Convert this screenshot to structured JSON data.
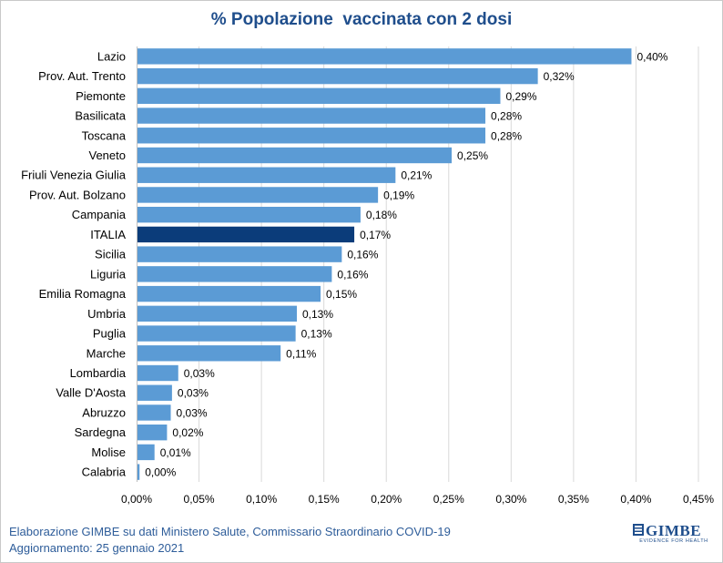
{
  "chart_data": {
    "type": "bar",
    "orientation": "horizontal",
    "title": "% Popolazione  vaccinata con 2 dosi",
    "categories": [
      "Lazio",
      "Prov. Aut. Trento",
      "Piemonte",
      "Basilicata",
      "Toscana",
      "Veneto",
      "Friuli Venezia Giulia",
      "Prov. Aut. Bolzano",
      "Campania",
      "ITALIA",
      "Sicilia",
      "Liguria",
      "Emilia Romagna",
      "Umbria",
      "Puglia",
      "Marche",
      "Lombardia",
      "Valle D'Aosta",
      "Abruzzo",
      "Sardegna",
      "Molise",
      "Calabria"
    ],
    "values": [
      0.4,
      0.32,
      0.29,
      0.28,
      0.28,
      0.25,
      0.21,
      0.19,
      0.18,
      0.17,
      0.16,
      0.16,
      0.15,
      0.13,
      0.13,
      0.11,
      0.03,
      0.03,
      0.03,
      0.02,
      0.01,
      0.0
    ],
    "plot_values": [
      0.396,
      0.321,
      0.291,
      0.279,
      0.279,
      0.252,
      0.207,
      0.193,
      0.179,
      0.174,
      0.164,
      0.156,
      0.147,
      0.128,
      0.127,
      0.115,
      0.033,
      0.028,
      0.027,
      0.024,
      0.014,
      0.002
    ],
    "data_labels": [
      "0,40%",
      "0,32%",
      "0,29%",
      "0,28%",
      "0,28%",
      "0,25%",
      "0,21%",
      "0,19%",
      "0,18%",
      "0,17%",
      "0,16%",
      "0,16%",
      "0,15%",
      "0,13%",
      "0,13%",
      "0,11%",
      "0,03%",
      "0,03%",
      "0,03%",
      "0,02%",
      "0,01%",
      "0,00%"
    ],
    "highlight_category": "ITALIA",
    "xlim": [
      0,
      0.45
    ],
    "x_ticks": [
      0,
      0.05,
      0.1,
      0.15,
      0.2,
      0.25,
      0.3,
      0.35,
      0.4,
      0.45
    ],
    "x_tick_labels": [
      "0,00%",
      "0,05%",
      "0,10%",
      "0,15%",
      "0,20%",
      "0,25%",
      "0,30%",
      "0,35%",
      "0,40%",
      "0,45%"
    ],
    "xlabel": "",
    "ylabel": "",
    "grid": "vertical",
    "legend": "none",
    "colors": {
      "bar": "#5b9bd5",
      "highlight": "#0b3c7a",
      "grid": "#d9d9d9",
      "text": "#000000"
    }
  },
  "footer": {
    "source": "Elaborazione GIMBE su dati Ministero Salute, Commissario Straordinario COVID-19",
    "updated": "Aggiornamento: 25 gennaio 2021"
  },
  "logo": {
    "name": "GIMBE",
    "tagline": "EVIDENCE FOR HEALTH",
    "icon": "gimbe-mark-icon"
  }
}
